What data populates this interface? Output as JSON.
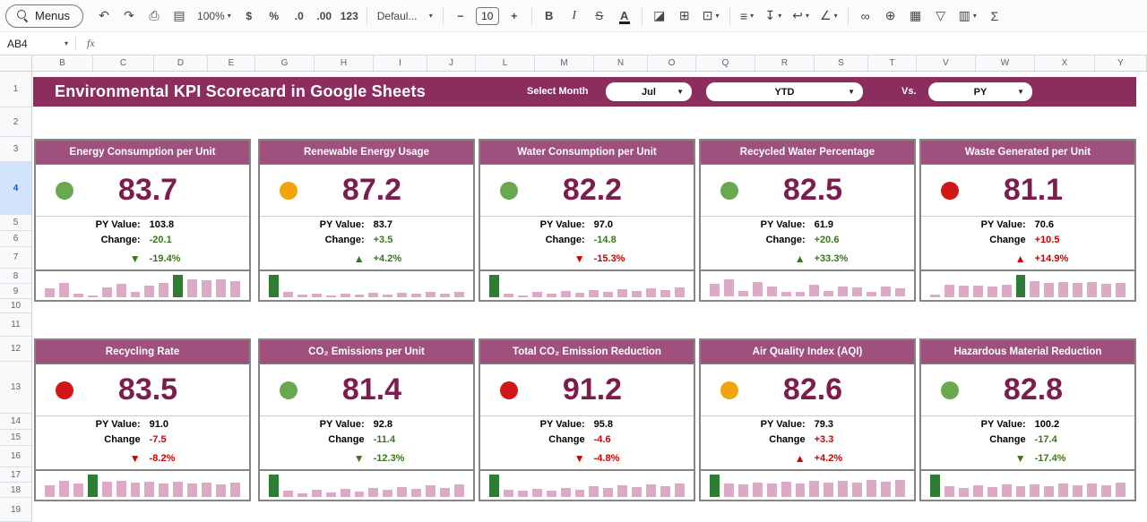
{
  "theme": {
    "banner_bg": "#8b2e5e",
    "card_header_bg": "#a0507c",
    "value_color": "#7d1d4e",
    "spark_bar": "#dcaac6",
    "spark_highlight": "#2e7d32"
  },
  "toolbar": {
    "menus": "Menus",
    "zoom": "100%",
    "currency": "$",
    "percent": "%",
    "dec_decrease": ".0",
    "dec_increase": ".00",
    "format_123": "123",
    "font_name": "Defaul...",
    "minus": "−",
    "font_size": "10",
    "plus": "+",
    "bold": "B",
    "italic": "I",
    "strikethrough": "S",
    "text_color": "A",
    "sum": "Σ"
  },
  "icons": {
    "caret": "▾",
    "undo": "↶",
    "redo": "↷",
    "print": "⎙",
    "paint_format": "▤",
    "fill_color": "◪",
    "borders": "⊞",
    "merge": "⊡",
    "align": "≡",
    "valign": "↧",
    "wrap": "↩",
    "rotate": "∠",
    "link": "∞",
    "comment": "⊕",
    "chart": "▦",
    "filter": "▽",
    "table": "▥"
  },
  "formula_bar": {
    "cell_ref": "AB4",
    "fx": "fx"
  },
  "grid": {
    "columns": [
      "B",
      "C",
      "D",
      "E",
      "G",
      "H",
      "I",
      "J",
      "L",
      "M",
      "N",
      "O",
      "Q",
      "R",
      "S",
      "T",
      "V",
      "W",
      "X",
      "Y"
    ],
    "rows": [
      "1",
      "2",
      "3",
      "4",
      "5",
      "6",
      "7",
      "8",
      "9",
      "10",
      "11",
      "12",
      "13",
      "14",
      "15",
      "16",
      "17",
      "18",
      "19"
    ],
    "selected_row": "4"
  },
  "banner": {
    "title": "Environmental KPI Scorecard in Google Sheets",
    "select_month_label": "Select Month",
    "month_value": "Jul",
    "period_value": "YTD",
    "vs_label": "Vs.",
    "compare_value": "PY"
  },
  "labels": {
    "py": "PY Value:"
  },
  "cards": [
    {
      "title": "Energy Consumption per Unit",
      "status_color": "#6aa84f",
      "value": "83.7",
      "py_value": "103.8",
      "change_label": "Change:",
      "change_value": "-20.1",
      "change_color": "#38761d",
      "arrow": "▼",
      "trend_color": "#38761d",
      "pct": "-19.4%",
      "spark": {
        "highlight": 9,
        "values": [
          40,
          65,
          15,
          8,
          45,
          60,
          25,
          50,
          65,
          100,
          80,
          75,
          78,
          72
        ]
      }
    },
    {
      "title": "Renewable Energy Usage",
      "status_color": "#f1a30c",
      "value": "87.2",
      "py_value": "83.7",
      "change_label": "Change:",
      "change_value": "+3.5",
      "change_color": "#38761d",
      "arrow": "▲",
      "trend_color": "#38761d",
      "pct": "+4.2%",
      "spark": {
        "highlight": 0,
        "values": [
          100,
          22,
          10,
          14,
          8,
          16,
          10,
          18,
          12,
          20,
          14,
          22,
          16,
          24
        ]
      }
    },
    {
      "title": "Water Consumption per Unit",
      "status_color": "#6aa84f",
      "value": "82.2",
      "py_value": "97.0",
      "change_label": "Change:",
      "change_value": "-14.8",
      "change_color": "#38761d",
      "arrow": "▼",
      "trend_color": "#cc0000",
      "pct": "-15.3%",
      "spark": {
        "highlight": 0,
        "values": [
          100,
          16,
          6,
          22,
          14,
          26,
          18,
          30,
          22,
          34,
          26,
          38,
          30,
          42
        ]
      }
    },
    {
      "title": "Recycled Water Percentage",
      "status_color": "#6aa84f",
      "value": "82.5",
      "py_value": "61.9",
      "change_label": "Change:",
      "change_value": "+20.6",
      "change_color": "#38761d",
      "arrow": "▲",
      "trend_color": "#38761d",
      "pct": "+33.3%",
      "spark": {
        "highlight": null,
        "values": [
          55,
          75,
          25,
          65,
          45,
          20,
          20,
          50,
          25,
          45,
          40,
          20,
          45,
          35
        ]
      }
    },
    {
      "title": "Waste Generated per Unit",
      "status_color": "#d01616",
      "value": "81.1",
      "py_value": "70.6",
      "change_label": "Change",
      "change_value": "+10.5",
      "change_color": "#cc0000",
      "arrow": "▲",
      "trend_color": "#cc0000",
      "pct": "+14.9%",
      "spark": {
        "highlight": 6,
        "values": [
          10,
          55,
          50,
          52,
          48,
          54,
          100,
          70,
          64,
          68,
          62,
          66,
          60,
          64
        ]
      }
    },
    {
      "title": "Recycling Rate",
      "status_color": "#d01616",
      "value": "83.5",
      "py_value": "91.0",
      "change_label": "Change",
      "change_value": "-7.5",
      "change_color": "#cc0000",
      "arrow": "▼",
      "trend_color": "#cc0000",
      "pct": "-8.2%",
      "spark": {
        "highlight": 3,
        "values": [
          50,
          72,
          60,
          100,
          66,
          70,
          62,
          68,
          60,
          66,
          58,
          64,
          56,
          62
        ]
      }
    },
    {
      "title": "CO₂ Emissions per Unit",
      "status_color": "#6aa84f",
      "value": "81.4",
      "py_value": "92.8",
      "change_label": "Change",
      "change_value": "-11.4",
      "change_color": "#38761d",
      "arrow": "▼",
      "trend_color": "#38761d",
      "pct": "-12.3%",
      "spark": {
        "highlight": 0,
        "values": [
          100,
          26,
          16,
          30,
          20,
          34,
          24,
          40,
          30,
          44,
          34,
          50,
          40,
          54
        ]
      }
    },
    {
      "title": "Total CO₂ Emission Reduction",
      "status_color": "#d01616",
      "value": "91.2",
      "py_value": "95.8",
      "change_label": "Change",
      "change_value": "-4.6",
      "change_color": "#cc0000",
      "arrow": "▼",
      "trend_color": "#cc0000",
      "pct": "-4.8%",
      "spark": {
        "highlight": 0,
        "values": [
          100,
          32,
          26,
          36,
          28,
          40,
          32,
          46,
          38,
          50,
          42,
          54,
          46,
          58
        ]
      }
    },
    {
      "title": "Air Quality Index (AQI)",
      "status_color": "#f1a30c",
      "value": "82.6",
      "py_value": "79.3",
      "change_label": "Change",
      "change_value": "+3.3",
      "change_color": "#cc0000",
      "arrow": "▲",
      "trend_color": "#cc0000",
      "pct": "+4.2%",
      "spark": {
        "highlight": 0,
        "values": [
          100,
          60,
          55,
          64,
          58,
          66,
          60,
          70,
          62,
          72,
          64,
          74,
          66,
          76
        ]
      }
    },
    {
      "title": "Hazardous Material Reduction",
      "status_color": "#6aa84f",
      "value": "82.8",
      "py_value": "100.2",
      "change_label": "Change",
      "change_value": "-17.4",
      "change_color": "#38761d",
      "arrow": "▼",
      "trend_color": "#38761d",
      "pct": "-17.4%",
      "spark": {
        "highlight": 0,
        "values": [
          100,
          46,
          40,
          50,
          44,
          54,
          46,
          56,
          48,
          58,
          50,
          60,
          52,
          62
        ]
      }
    }
  ]
}
